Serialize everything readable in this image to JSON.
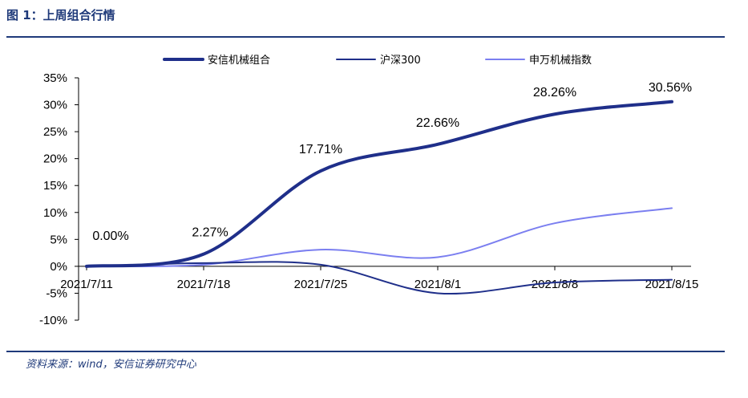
{
  "figure": {
    "title": "图 1：上周组合行情",
    "source": "资料来源：wind，安信证券研究中心"
  },
  "chart_data": {
    "type": "line",
    "x": [
      "2021/7/11",
      "2021/7/18",
      "2021/7/25",
      "2021/8/1",
      "2021/8/8",
      "2021/8/15"
    ],
    "ylim": [
      -10,
      35
    ],
    "yticks": [
      -10,
      -5,
      0,
      5,
      10,
      15,
      20,
      25,
      30,
      35
    ],
    "ytick_labels": [
      "-10%",
      "-5%",
      "0%",
      "5%",
      "10%",
      "15%",
      "20%",
      "25%",
      "30%",
      "35%"
    ],
    "grid": false,
    "legend_position": "top",
    "series": [
      {
        "name": "安信机械组合",
        "color": "#1f2f8a",
        "width": 4,
        "values": [
          0.0,
          2.27,
          17.71,
          22.66,
          28.26,
          30.56
        ],
        "labels": [
          "0.00%",
          "2.27%",
          "17.71%",
          "22.66%",
          "28.26%",
          "30.56%"
        ]
      },
      {
        "name": "沪深300",
        "color": "#1f2f8a",
        "width": 2,
        "values": [
          0.0,
          0.6,
          0.3,
          -5.0,
          -3.0,
          -2.5
        ]
      },
      {
        "name": "申万机械指数",
        "color": "#7b7ff0",
        "width": 2,
        "values": [
          0.0,
          0.3,
          3.1,
          1.7,
          8.0,
          10.8
        ]
      }
    ]
  }
}
